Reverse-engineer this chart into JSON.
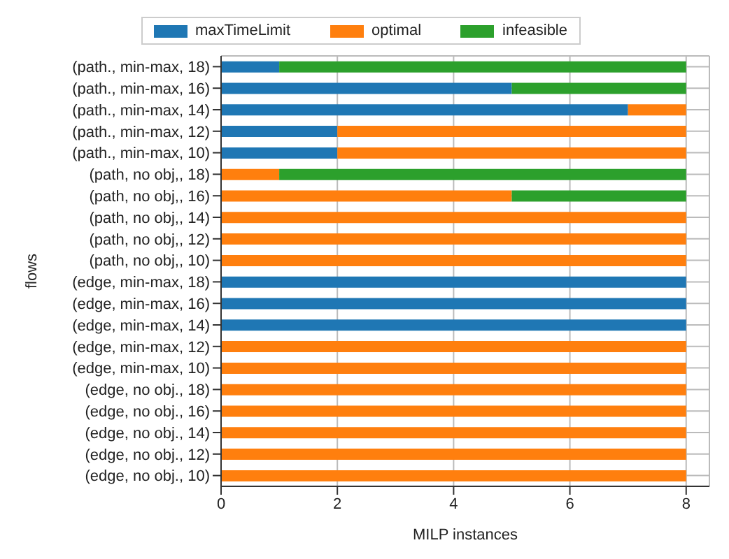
{
  "chart_data": {
    "type": "bar",
    "orientation": "horizontal",
    "stacked": true,
    "xlabel": "MILP instances",
    "ylabel": "flows",
    "categories": [
      "(path., min-max, 18)",
      "(path., min-max, 16)",
      "(path., min-max, 14)",
      "(path., min-max, 12)",
      "(path., min-max, 10)",
      "(path, no obj,, 18)",
      "(path, no obj,, 16)",
      "(path, no obj,, 14)",
      "(path, no obj,, 12)",
      "(path, no obj,, 10)",
      "(edge, min-max, 18)",
      "(edge, min-max, 16)",
      "(edge, min-max, 14)",
      "(edge, min-max, 12)",
      "(edge, min-max, 10)",
      "(edge, no obj., 18)",
      "(edge, no obj., 16)",
      "(edge, no obj., 14)",
      "(edge, no obj., 12)",
      "(edge, no obj., 10)"
    ],
    "series": [
      {
        "name": "maxTimeLimit",
        "color": "#1f77b4",
        "values": [
          1,
          5,
          7,
          2,
          2,
          0,
          0,
          0,
          0,
          0,
          8,
          8,
          8,
          0,
          0,
          0,
          0,
          0,
          0,
          0
        ]
      },
      {
        "name": "optimal",
        "color": "#ff7f0e",
        "values": [
          0,
          0,
          1,
          6,
          6,
          1,
          5,
          8,
          8,
          8,
          0,
          0,
          0,
          8,
          8,
          8,
          8,
          8,
          8,
          8
        ]
      },
      {
        "name": "infeasible",
        "color": "#2ca02c",
        "values": [
          7,
          3,
          0,
          0,
          0,
          7,
          3,
          0,
          0,
          0,
          0,
          0,
          0,
          0,
          0,
          0,
          0,
          0,
          0,
          0
        ]
      }
    ],
    "xlim": [
      0,
      8.4
    ],
    "xticks": [
      0,
      2,
      4,
      6,
      8
    ],
    "grid": true,
    "legend": "top"
  }
}
